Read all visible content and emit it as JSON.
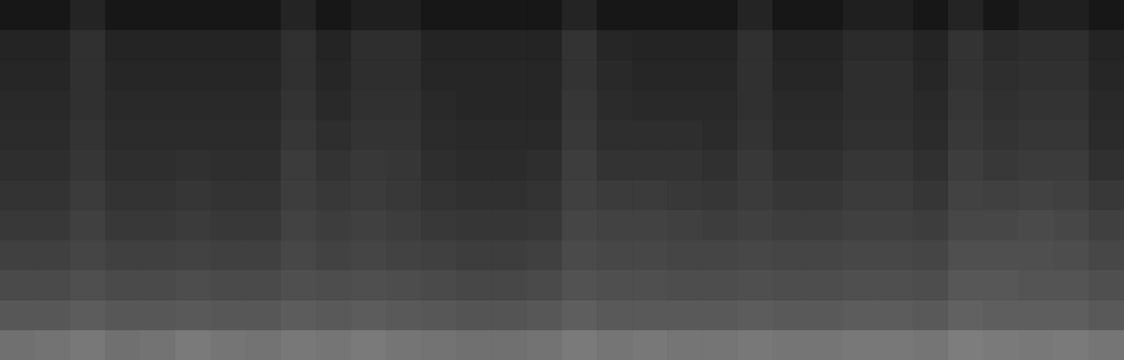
{
  "chart_data": {
    "type": "heatmap",
    "tick_labels": false,
    "grid": false,
    "legend": false,
    "color_range": [
      0,
      100
    ],
    "cells": [
      [
        9,
        9,
        14,
        9,
        9,
        9,
        9,
        9,
        14,
        9,
        12,
        12,
        9,
        9,
        9,
        9,
        14,
        9,
        9,
        9,
        9,
        14,
        9,
        9,
        12,
        12,
        9,
        14,
        9,
        12,
        12,
        9
      ],
      [
        14,
        14,
        19,
        14,
        14,
        14,
        14,
        14,
        19,
        14,
        18,
        18,
        14,
        14,
        14,
        14,
        20,
        15,
        14,
        14,
        14,
        19,
        14,
        14,
        17,
        17,
        14,
        20,
        17,
        18,
        18,
        14
      ],
      [
        15,
        15,
        19,
        15,
        15,
        15,
        15,
        15,
        19,
        15,
        18,
        18,
        15,
        15,
        15,
        15,
        20,
        16,
        15,
        15,
        15,
        19,
        15,
        15,
        18,
        18,
        15,
        20,
        18,
        19,
        19,
        15
      ],
      [
        16,
        16,
        19,
        16,
        16,
        16,
        16,
        16,
        20,
        16,
        19,
        19,
        16,
        15,
        15,
        15,
        21,
        17,
        16,
        16,
        16,
        19,
        16,
        16,
        18,
        18,
        16,
        21,
        19,
        20,
        20,
        16
      ],
      [
        17,
        17,
        20,
        17,
        17,
        17,
        17,
        17,
        21,
        18,
        20,
        20,
        17,
        16,
        16,
        16,
        22,
        18,
        18,
        18,
        17,
        20,
        17,
        17,
        19,
        19,
        17,
        22,
        20,
        21,
        21,
        17
      ],
      [
        18,
        18,
        21,
        18,
        18,
        19,
        18,
        18,
        23,
        20,
        22,
        21,
        18,
        17,
        17,
        18,
        24,
        20,
        20,
        20,
        19,
        22,
        19,
        19,
        21,
        21,
        19,
        24,
        22,
        23,
        23,
        19
      ],
      [
        20,
        20,
        23,
        20,
        20,
        21,
        20,
        20,
        24,
        22,
        23,
        22,
        20,
        19,
        19,
        20,
        25,
        23,
        23,
        22,
        21,
        23,
        21,
        21,
        23,
        23,
        21,
        26,
        25,
        26,
        25,
        22
      ],
      [
        22,
        22,
        25,
        22,
        22,
        23,
        22,
        22,
        26,
        24,
        25,
        24,
        22,
        21,
        21,
        22,
        27,
        26,
        26,
        25,
        24,
        25,
        24,
        24,
        25,
        25,
        24,
        28,
        28,
        29,
        28,
        25
      ],
      [
        25,
        25,
        27,
        25,
        25,
        26,
        25,
        25,
        28,
        26,
        27,
        26,
        25,
        24,
        24,
        25,
        29,
        28,
        28,
        27,
        27,
        28,
        27,
        27,
        28,
        28,
        27,
        31,
        31,
        31,
        30,
        28
      ],
      [
        29,
        29,
        31,
        29,
        29,
        30,
        29,
        29,
        31,
        30,
        31,
        30,
        29,
        28,
        28,
        29,
        32,
        31,
        31,
        30,
        30,
        31,
        30,
        30,
        31,
        31,
        30,
        34,
        34,
        33,
        33,
        31
      ],
      [
        34,
        34,
        36,
        34,
        34,
        35,
        34,
        34,
        36,
        35,
        36,
        35,
        34,
        33,
        33,
        34,
        37,
        35,
        35,
        35,
        35,
        36,
        35,
        35,
        36,
        36,
        35,
        38,
        37,
        37,
        37,
        35
      ],
      [
        44,
        45,
        47,
        44,
        45,
        48,
        46,
        45,
        47,
        46,
        48,
        46,
        45,
        44,
        44,
        45,
        48,
        46,
        47,
        46,
        46,
        47,
        46,
        46,
        47,
        47,
        46,
        49,
        48,
        47,
        48,
        46
      ]
    ]
  }
}
